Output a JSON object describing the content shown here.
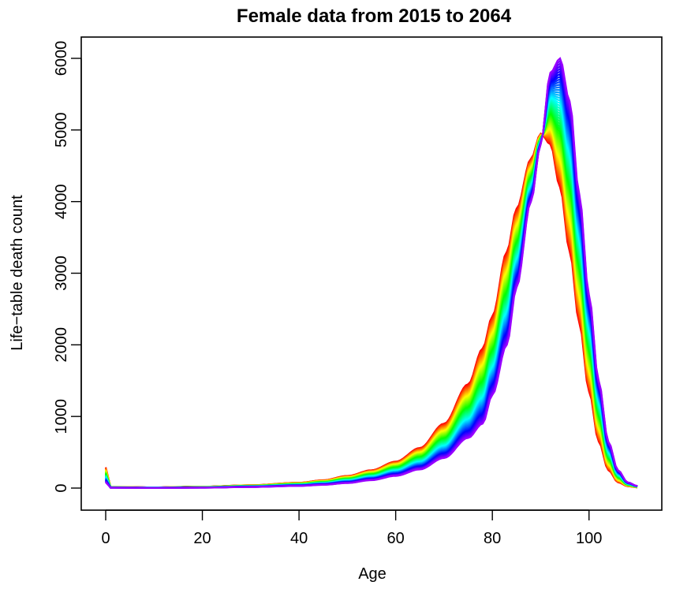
{
  "chart_data": {
    "type": "line",
    "title": "Female data from 2015 to 2064",
    "xlabel": "Age",
    "ylabel": "Life−table death count",
    "xlim": [
      0,
      110
    ],
    "ylim": [
      0,
      6000
    ],
    "xticks": [
      0,
      20,
      40,
      60,
      80,
      100
    ],
    "yticks": [
      0,
      1000,
      2000,
      3000,
      4000,
      5000,
      6000
    ],
    "grid": false,
    "legend": "none",
    "series_count": 50,
    "color_scale": "rainbow (first year red → last year violet)",
    "series": [
      {
        "year": 2015,
        "color": "#ff0000",
        "x": [
          0,
          1,
          10,
          20,
          30,
          40,
          45,
          50,
          55,
          60,
          65,
          70,
          75,
          78,
          80,
          83,
          85,
          88,
          90,
          92,
          94,
          96,
          98,
          100,
          102,
          104,
          106,
          108,
          110
        ],
        "values": [
          290,
          15,
          10,
          20,
          40,
          75,
          110,
          170,
          250,
          370,
          560,
          900,
          1450,
          1950,
          2400,
          3300,
          3900,
          4600,
          4950,
          4800,
          4200,
          3300,
          2300,
          1350,
          650,
          250,
          80,
          25,
          10
        ]
      },
      {
        "year": 2064,
        "color": "#9900ff",
        "x": [
          0,
          1,
          10,
          20,
          30,
          40,
          45,
          50,
          55,
          60,
          65,
          70,
          75,
          78,
          80,
          83,
          85,
          88,
          90,
          92,
          94,
          96,
          98,
          100,
          102,
          104,
          106,
          108,
          110
        ],
        "values": [
          80,
          5,
          3,
          5,
          15,
          30,
          45,
          70,
          110,
          170,
          260,
          420,
          700,
          900,
          1300,
          2000,
          2800,
          4000,
          4800,
          5800,
          6000,
          5400,
          4100,
          2700,
          1500,
          650,
          250,
          80,
          30
        ]
      }
    ]
  }
}
